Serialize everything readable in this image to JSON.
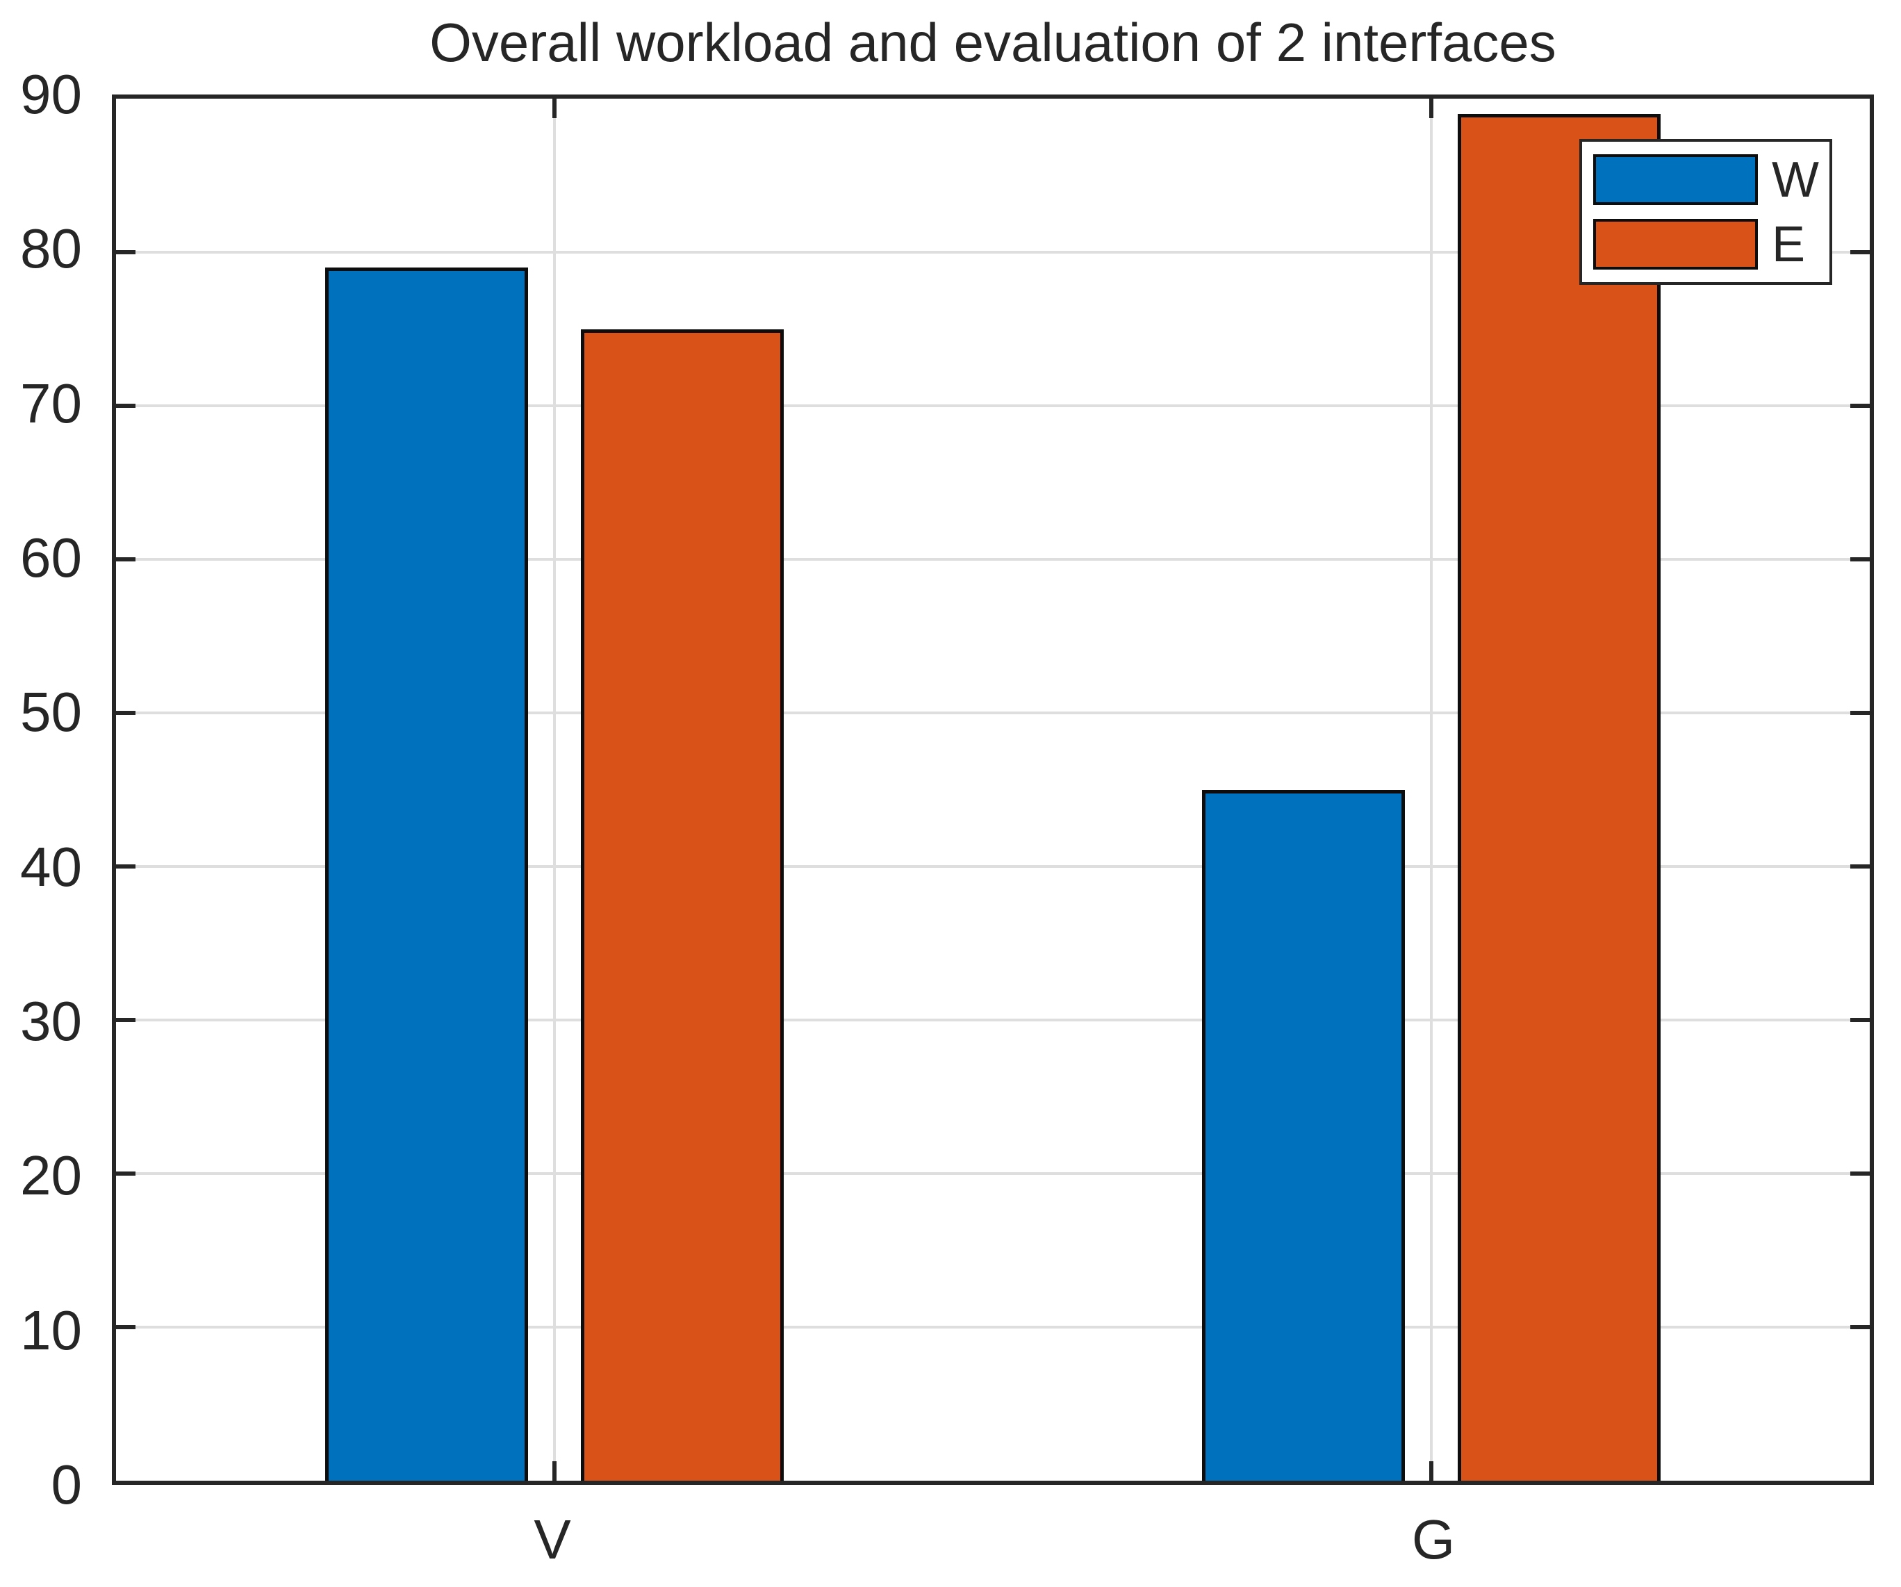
{
  "chart_data": {
    "type": "bar",
    "title": "Overall workload and evaluation of 2 interfaces",
    "categories": [
      "V",
      "G"
    ],
    "series": [
      {
        "name": "W",
        "color": "#0072BD",
        "values": [
          79,
          45
        ]
      },
      {
        "name": "E",
        "color": "#D95319",
        "values": [
          75,
          89
        ]
      }
    ],
    "ylim": [
      0,
      90
    ],
    "yticks": [
      0,
      10,
      20,
      30,
      40,
      50,
      60,
      70,
      80,
      90
    ],
    "xlabel": "",
    "ylabel": "",
    "grid": true,
    "legend_position": "northeast",
    "axis_color": "#262626",
    "grid_color": "#dedede",
    "background_color": "#ffffff"
  }
}
